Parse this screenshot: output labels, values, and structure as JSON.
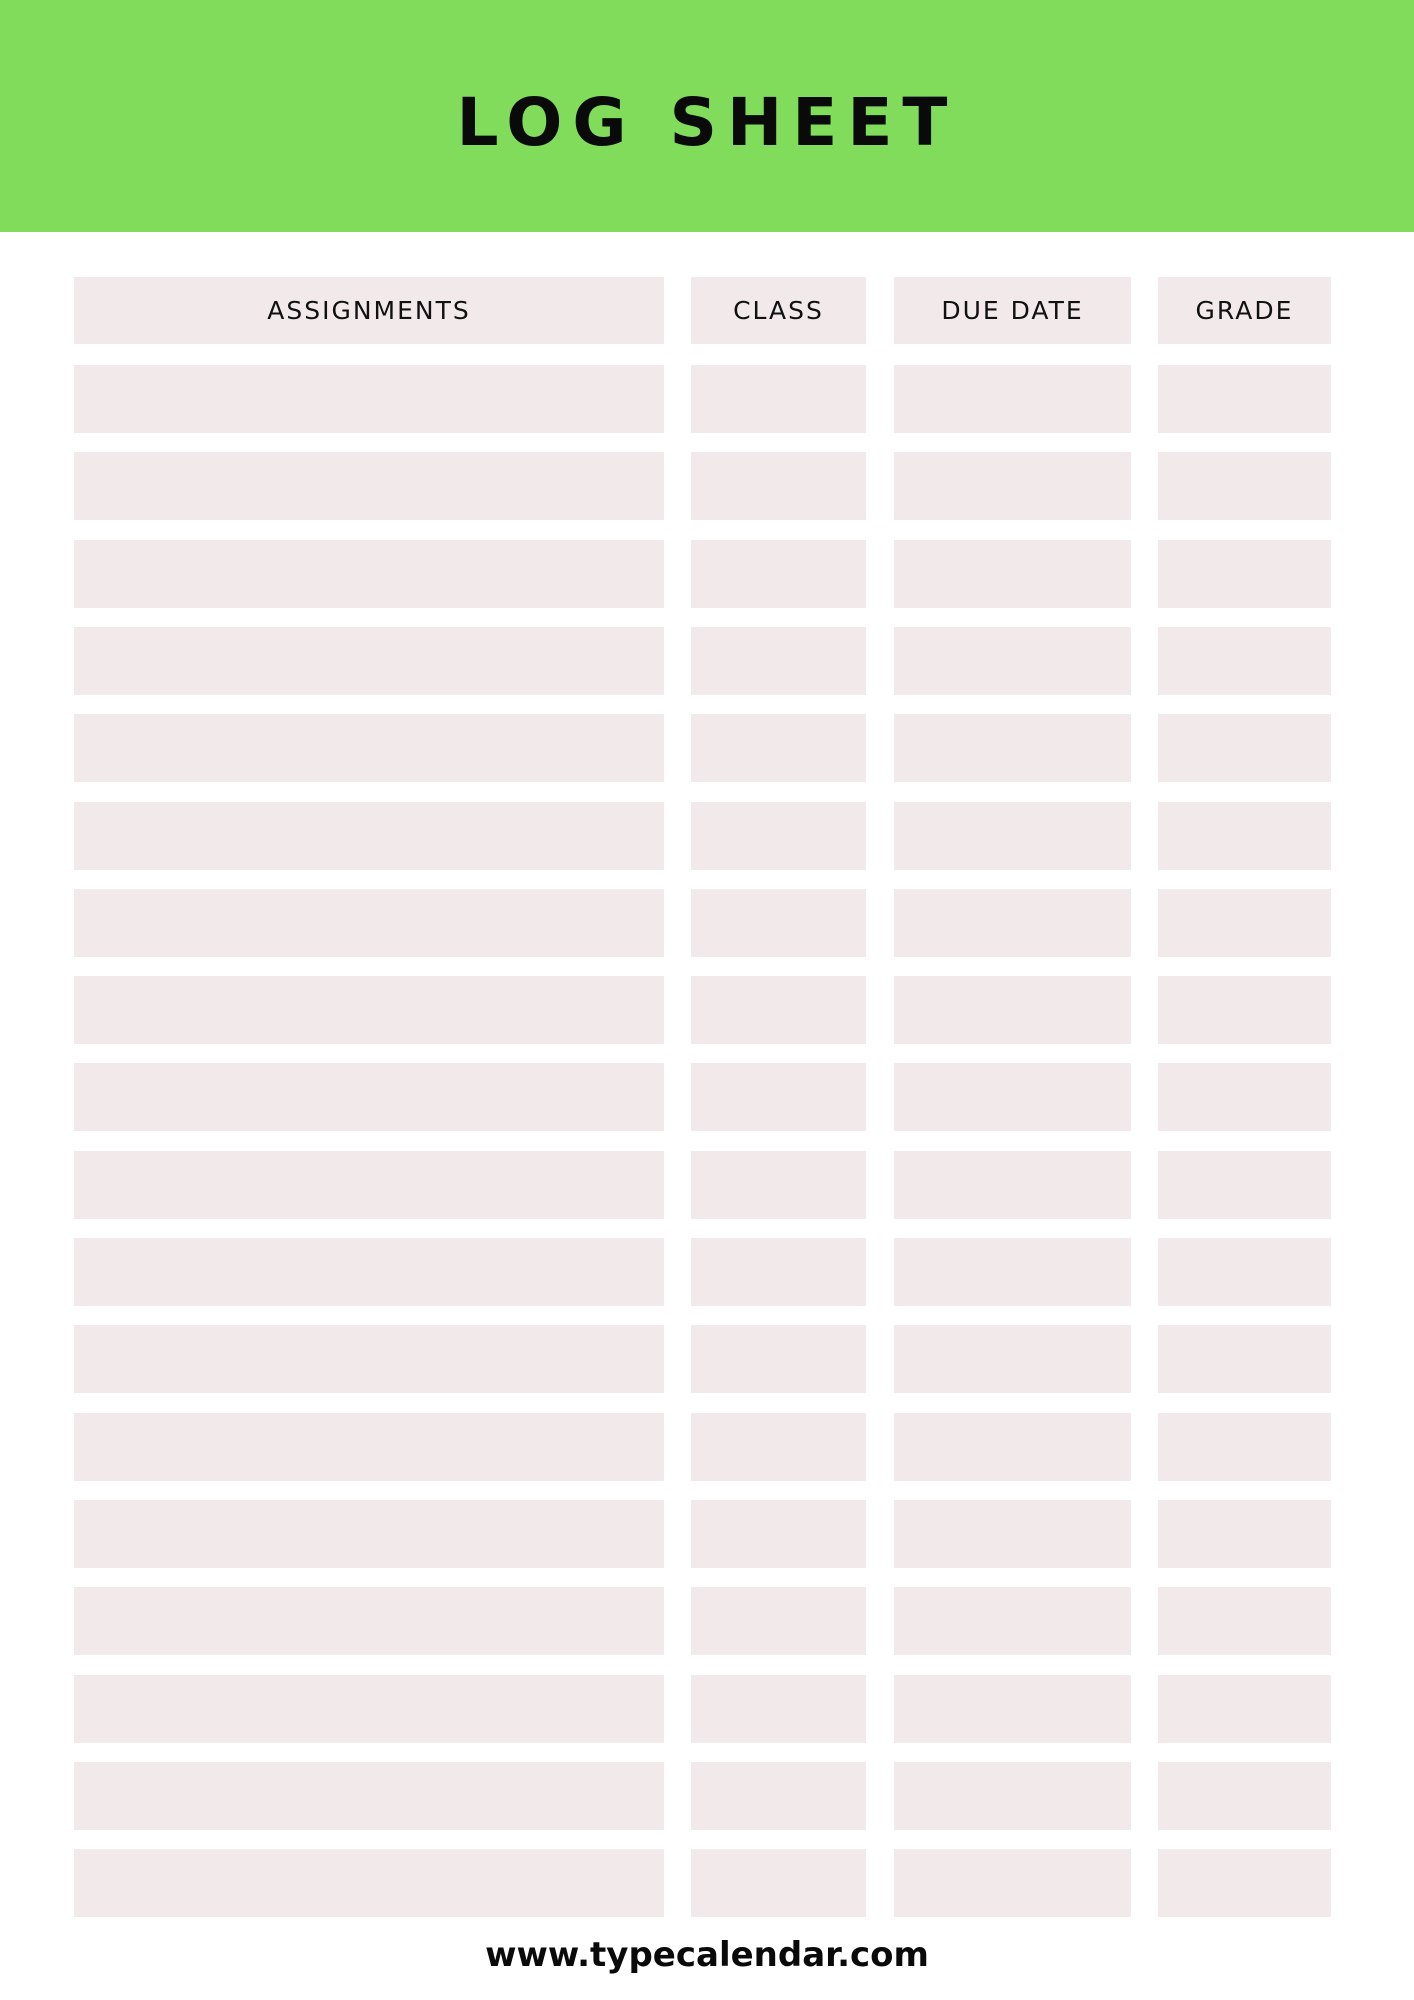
{
  "header": {
    "title": "LOG SHEET",
    "background_color": "#80dc5a"
  },
  "table": {
    "columns": [
      "ASSIGNMENTS",
      "CLASS",
      "DUE DATE",
      "GRADE"
    ],
    "empty_row_count": 18,
    "cell_color": "#f2eaea"
  },
  "footer": {
    "website": "www.typecalendar.com"
  }
}
